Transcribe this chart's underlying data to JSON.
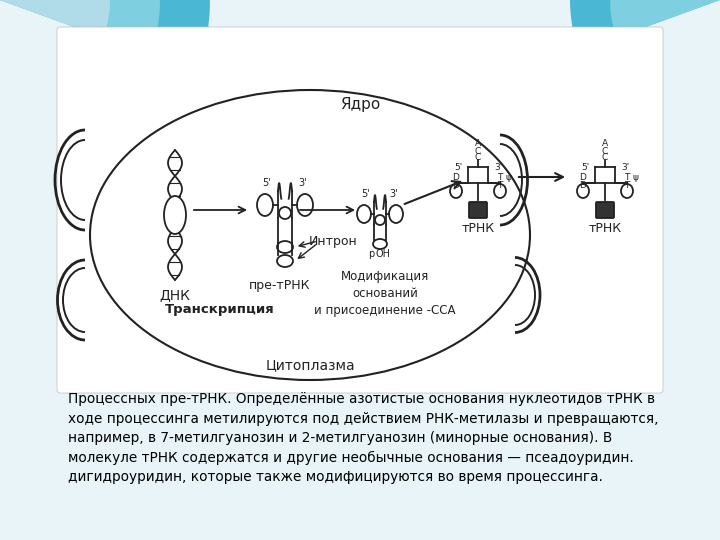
{
  "bg_color": "#e8f4f8",
  "slide_bg": "#ffffff",
  "text_block": "Процессных пре-тРНК. Определённые азотистые основания нуклеотидов тРНК в\nходе процессинга метилируются под действием РНК-метилазы и превращаются,\nнапример, в 7-метилгуанозин и 2-метилгуанозин (минорные основания). В\nмолекуле тРНК содержатся и другие необычные основания — псеадоуридин.\nдигидроуридин, которые также модифицируются во время процессинга.",
  "nucleus_label": "Ядро",
  "cytoplasm_label": "Цитоплазма",
  "dna_label": "ДНК",
  "transcription_label": "Транскрипция",
  "pre_trna_label": "пре-тРНК",
  "intron_label": "Интрон",
  "modification_label": "Модификация\nоснований\nи присоединение -ССА",
  "trna_label": "тРНК",
  "line_color": "#222222",
  "fill_color": "#ffffff",
  "teal1": "#4ab8d4",
  "teal2": "#7ecfe0",
  "teal3": "#b0dcea"
}
